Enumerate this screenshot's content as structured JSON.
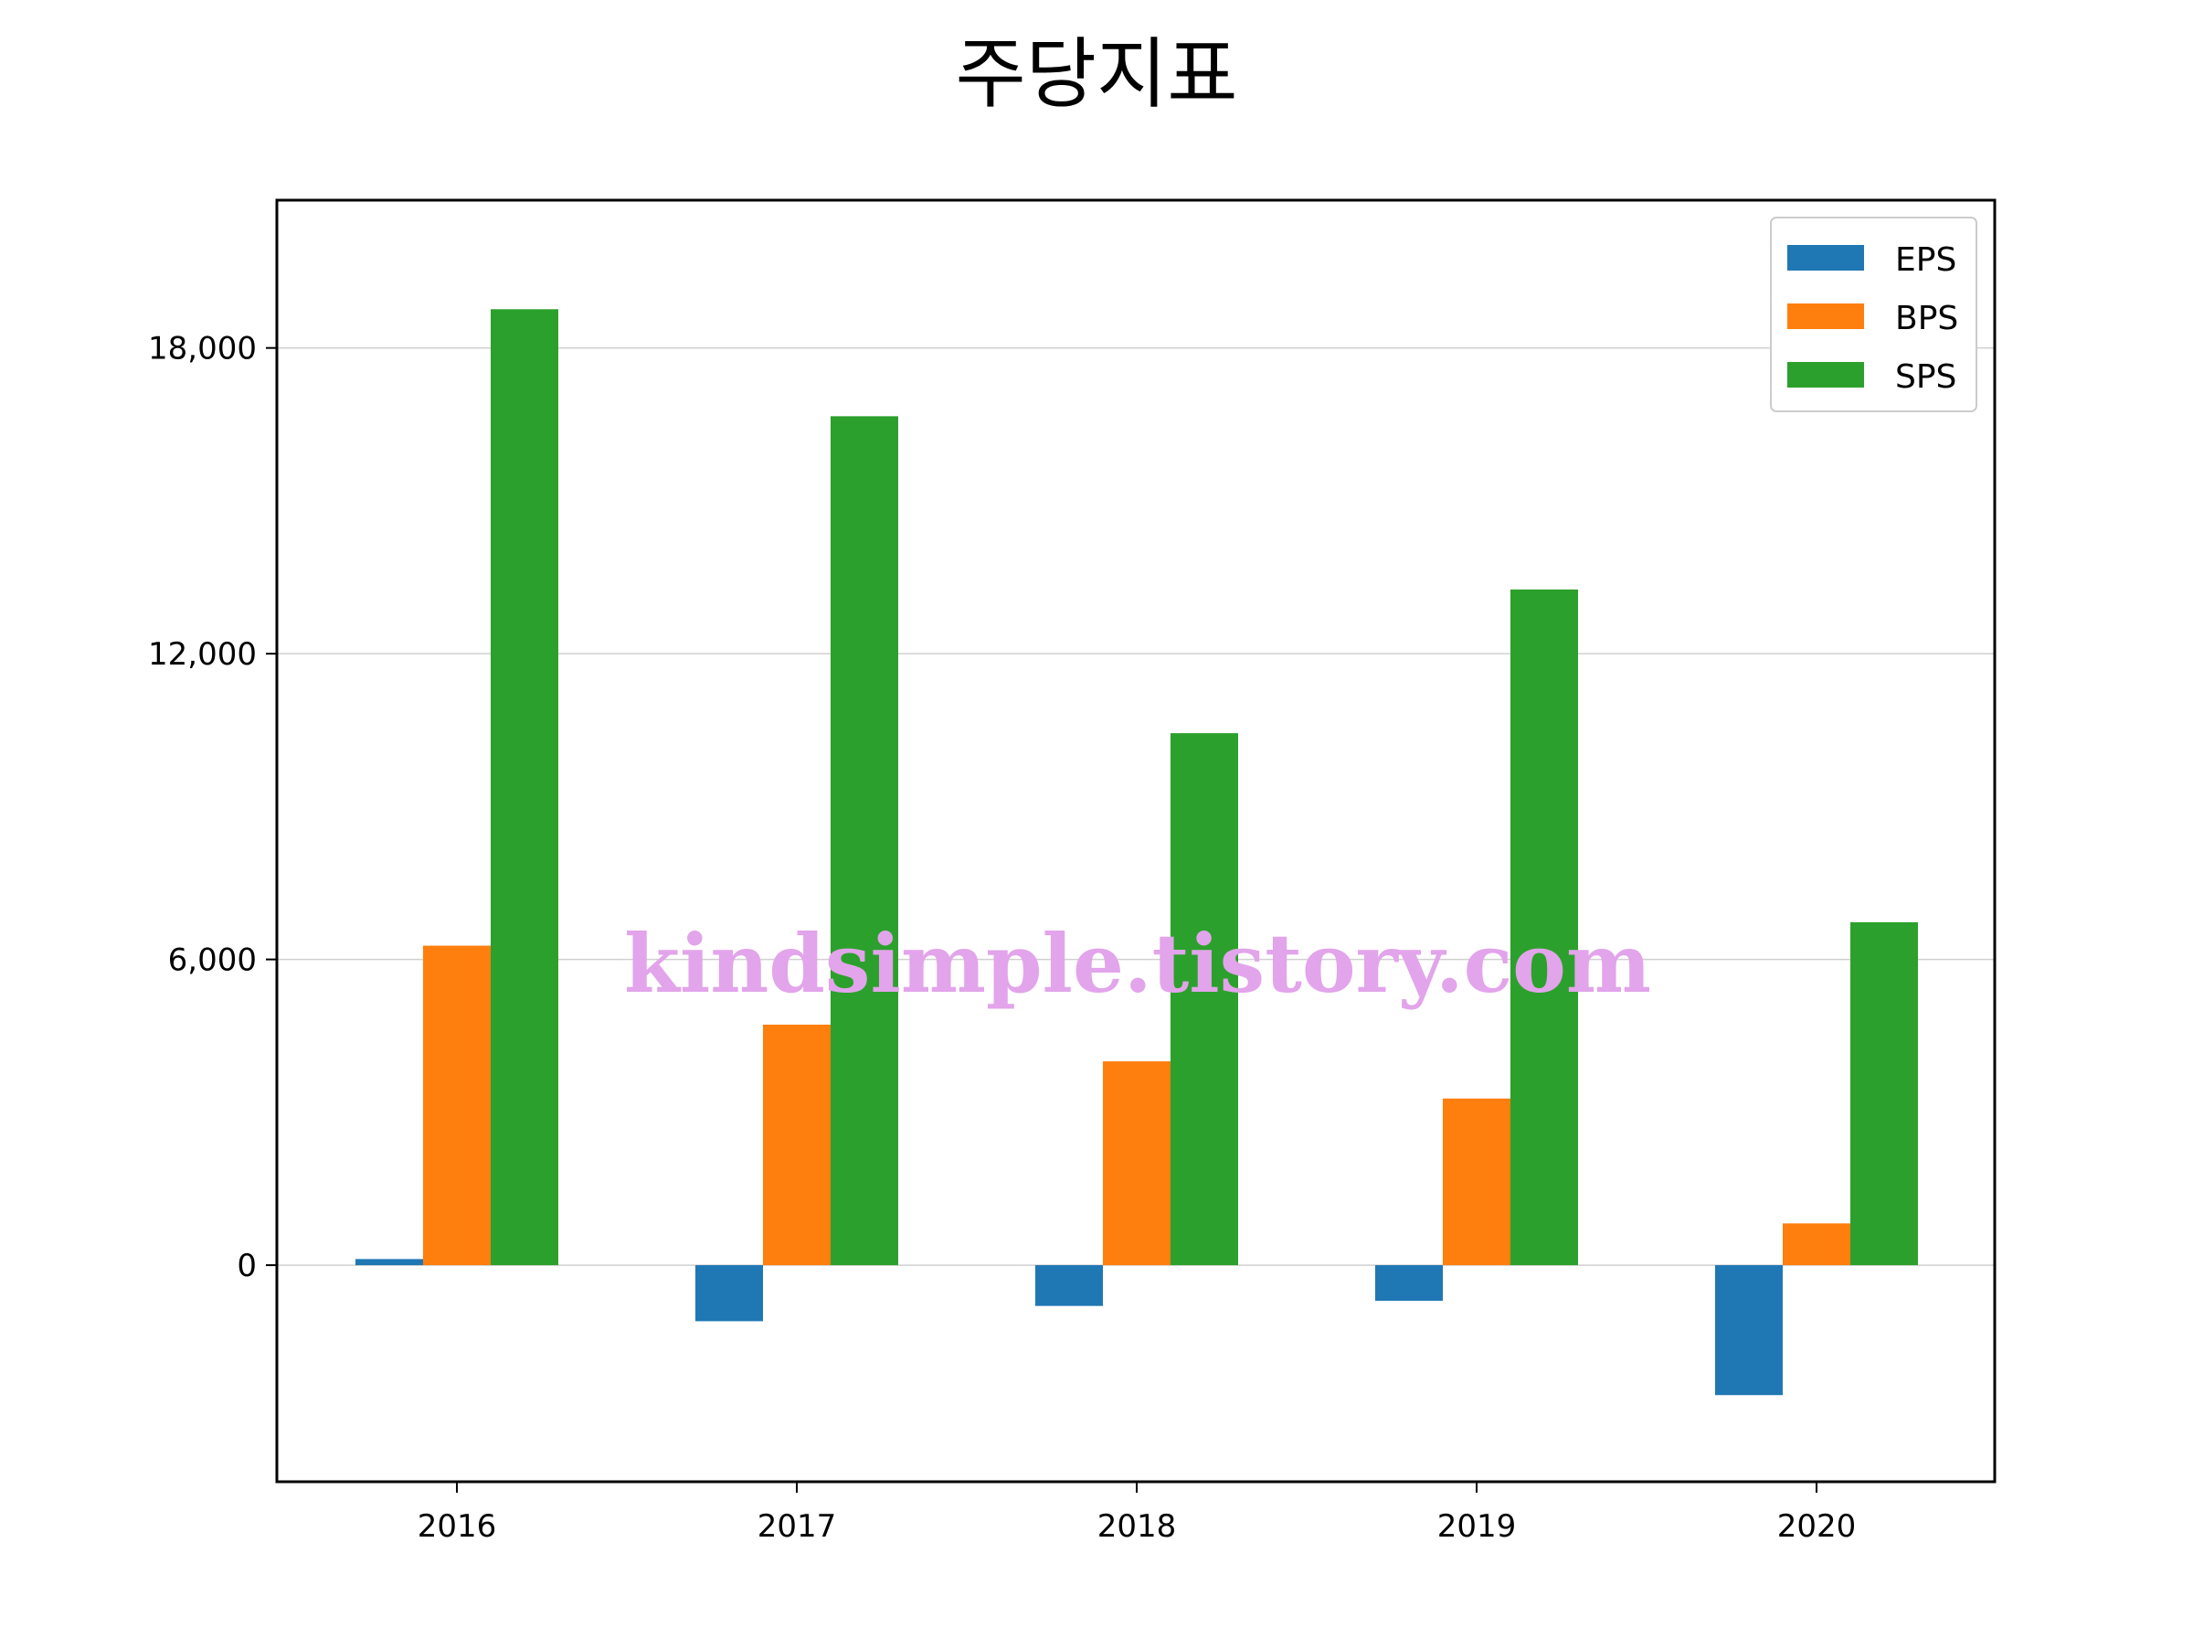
{
  "chart_data": {
    "type": "bar",
    "title": "주당지표",
    "categories": [
      "2016",
      "2017",
      "2018",
      "2019",
      "2020"
    ],
    "series": [
      {
        "name": "EPS",
        "color": "#1f77b4",
        "values": [
          120,
          -1100,
          -800,
          -700,
          -2550
        ]
      },
      {
        "name": "BPS",
        "color": "#ff7f0e",
        "values": [
          6270,
          4720,
          4000,
          3270,
          820
        ]
      },
      {
        "name": "SPS",
        "color": "#2ca02c",
        "values": [
          18760,
          16660,
          10440,
          13260,
          6730
        ]
      }
    ],
    "ylim": [
      -4250,
      20900
    ],
    "yticks": [
      0,
      6000,
      12000,
      18000
    ],
    "ytick_labels": [
      "0",
      "6,000",
      "12,000",
      "18,000"
    ],
    "grid": "horizontal",
    "legend_position": "top-right"
  },
  "watermark": "kindsimple.tistory.com"
}
